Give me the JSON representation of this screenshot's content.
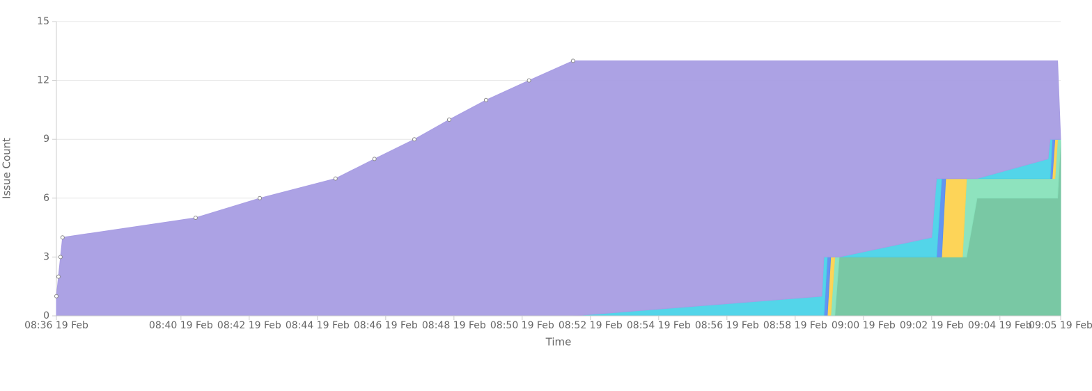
{
  "chart_data": {
    "type": "area",
    "stacked": true,
    "x_label": "Time",
    "y_label": "Issue Count",
    "x": [
      516.35,
      516.41,
      516.47,
      516.53,
      520.43,
      522.31,
      524.53,
      525.67,
      526.84,
      527.86,
      528.94,
      530.2,
      531.49,
      538.78,
      538.84,
      538.94,
      539.04,
      539.16,
      539.29,
      542.0,
      542.14,
      542.29,
      542.41,
      542.9,
      543.02,
      543.33,
      545.41,
      545.47,
      545.53,
      545.61,
      545.69,
      545.78
    ],
    "xlim": [
      516.35,
      545.78
    ],
    "xticks": [
      {
        "value": 516.35,
        "label": "08:36 19 Feb"
      },
      {
        "value": 520,
        "label": "08:40 19 Feb"
      },
      {
        "value": 522,
        "label": "08:42 19 Feb"
      },
      {
        "value": 524,
        "label": "08:44 19 Feb"
      },
      {
        "value": 526,
        "label": "08:46 19 Feb"
      },
      {
        "value": 528,
        "label": "08:48 19 Feb"
      },
      {
        "value": 530,
        "label": "08:50 19 Feb"
      },
      {
        "value": 532,
        "label": "08:52 19 Feb"
      },
      {
        "value": 534,
        "label": "08:54 19 Feb"
      },
      {
        "value": 536,
        "label": "08:56 19 Feb"
      },
      {
        "value": 538,
        "label": "08:58 19 Feb"
      },
      {
        "value": 540,
        "label": "09:00 19 Feb"
      },
      {
        "value": 542,
        "label": "09:02 19 Feb"
      },
      {
        "value": 544,
        "label": "09:04 19 Feb"
      },
      {
        "value": 545.78,
        "label": "09:05 19 Feb"
      }
    ],
    "ylim": [
      0,
      15
    ],
    "yticks": [
      0,
      3,
      6,
      9,
      12,
      15
    ],
    "grid": true,
    "series": [
      {
        "color": "#72c59f",
        "values": [
          0,
          0,
          0,
          0,
          0,
          0,
          0,
          0,
          0,
          0,
          0,
          0,
          0,
          0,
          0,
          0,
          0,
          0,
          3,
          3,
          3,
          3,
          3,
          3,
          3,
          6,
          6,
          6,
          6,
          6,
          6,
          9
        ]
      },
      {
        "color": "#88e1bb",
        "values": [
          0,
          0,
          0,
          0,
          0,
          0,
          0,
          0,
          0,
          0,
          0,
          0,
          0,
          0,
          0,
          0,
          0,
          3,
          0,
          0,
          0,
          0,
          0,
          0,
          4,
          1,
          1,
          1,
          1,
          1,
          3,
          0
        ]
      },
      {
        "color": "#fdd24f",
        "values": [
          0,
          0,
          0,
          0,
          0,
          0,
          0,
          0,
          0,
          0,
          0,
          0,
          0,
          0,
          0,
          0,
          3,
          0,
          0,
          0,
          0,
          0,
          4,
          4,
          0,
          0,
          0,
          0,
          0,
          2,
          0,
          0
        ]
      },
      {
        "color": "#5b8ff0",
        "values": [
          0,
          0,
          0,
          0,
          0,
          0,
          0,
          0,
          0,
          0,
          0,
          0,
          0,
          0,
          0,
          3,
          0,
          0,
          0,
          0,
          0,
          4,
          0,
          0,
          0,
          0,
          0,
          0,
          2,
          0,
          0,
          0
        ]
      },
      {
        "color": "#4ad3e8",
        "values": [
          0,
          0,
          0,
          0,
          0,
          0,
          0,
          0,
          0,
          0,
          0,
          0,
          0,
          1,
          3,
          0,
          0,
          0,
          0,
          1,
          4,
          0,
          0,
          0,
          0,
          0,
          1,
          2,
          0,
          0,
          0,
          0
        ]
      },
      {
        "color": "#a89de3",
        "values": [
          1,
          2,
          3,
          4,
          5,
          6,
          7,
          8,
          9,
          10,
          11,
          12,
          13,
          12,
          10,
          10,
          10,
          10,
          10,
          9,
          6,
          6,
          6,
          6,
          6,
          6,
          5,
          4,
          4,
          4,
          4,
          0
        ]
      }
    ]
  }
}
